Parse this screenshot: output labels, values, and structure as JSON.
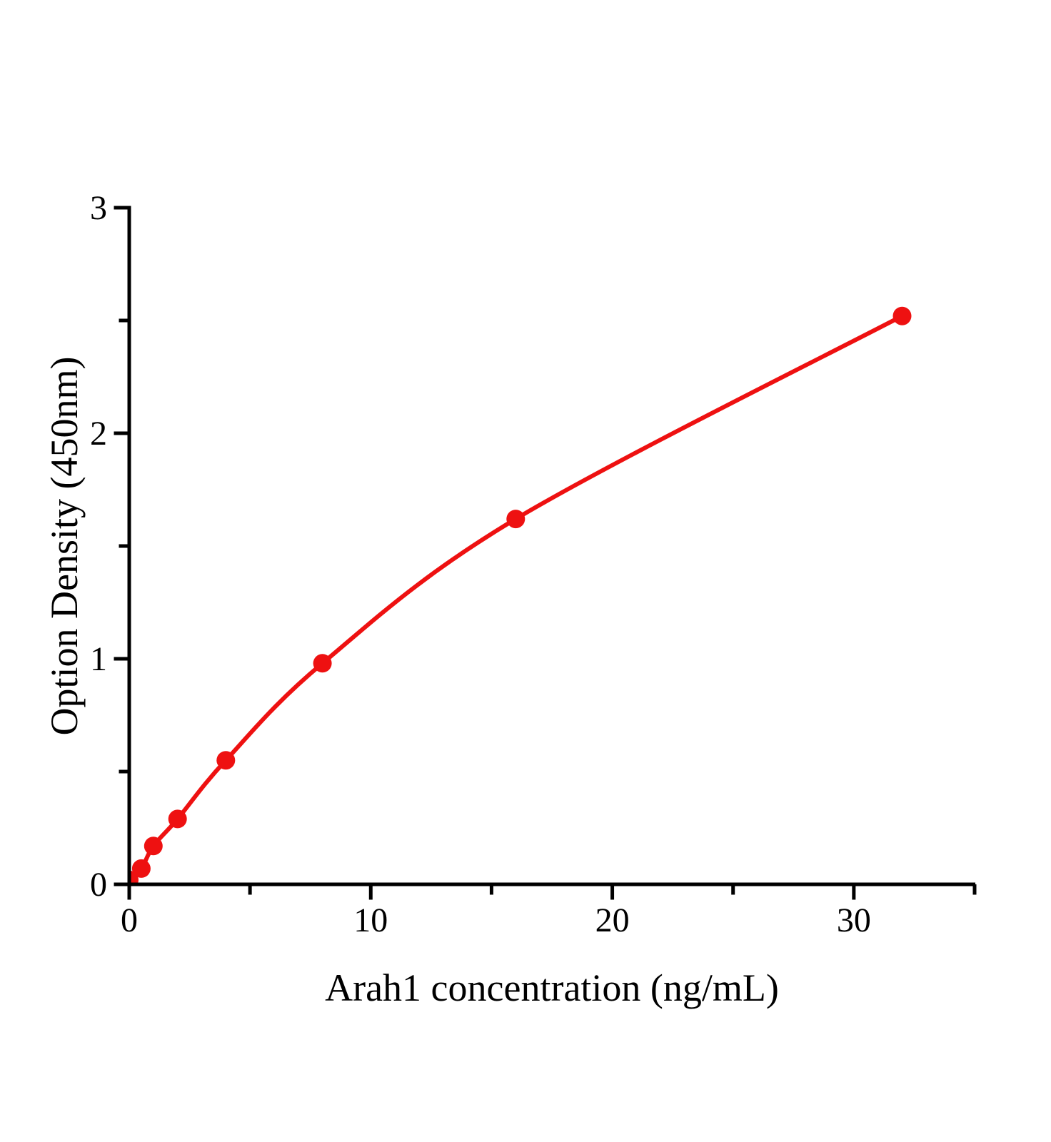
{
  "figure": {
    "background": "#ffffff"
  },
  "chart_data": {
    "type": "line",
    "title": "",
    "xlabel": "Arah1 concentration（ng/mL）",
    "ylabel": "Option Density（450nm）",
    "x": [
      0,
      0.5,
      1,
      2,
      4,
      8,
      16,
      32
    ],
    "y": [
      0.02,
      0.07,
      0.17,
      0.29,
      0.55,
      0.98,
      1.62,
      2.52
    ],
    "xlim": [
      0,
      35
    ],
    "ylim": [
      0,
      3
    ],
    "x_major_ticks": [
      0,
      10,
      20,
      30
    ],
    "x_minor_ticks": [
      5,
      15,
      25,
      35
    ],
    "y_major_ticks": [
      0,
      1,
      2,
      3
    ],
    "y_minor_ticks": [
      0.5,
      1.5,
      2.5
    ],
    "grid": false,
    "legend": "none",
    "curve_style": "smooth",
    "marker": "filled-circle",
    "line_color": "#ee1111",
    "marker_color": "#ee1111",
    "axis_color": "#000000"
  }
}
